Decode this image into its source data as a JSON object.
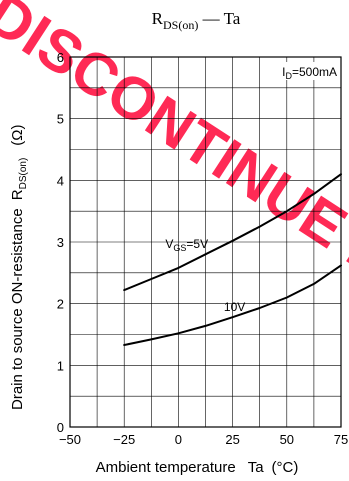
{
  "chart_data": {
    "type": "line",
    "title": {
      "main": "R",
      "sub": "DS(on)",
      "sep": " — ",
      "tail": "Ta"
    },
    "xlabel": {
      "text": "Ambient temperature",
      "var": "Ta",
      "unit": "(°C)"
    },
    "ylabel": {
      "text": "Drain to source ON-resistance",
      "var": "R",
      "var_sub": "DS(on)",
      "unit": "(Ω)"
    },
    "xlim": [
      -50,
      75
    ],
    "ylim": [
      0,
      6
    ],
    "xticks": [
      "−50",
      "−25",
      "0",
      "25",
      "50",
      "75"
    ],
    "xtick_values": [
      -50,
      -25,
      0,
      25,
      50,
      75
    ],
    "yticks": [
      "0",
      "1",
      "2",
      "3",
      "4",
      "5",
      "6"
    ],
    "ytick_values": [
      0,
      1,
      2,
      3,
      4,
      5,
      6
    ],
    "grid": true,
    "condition": {
      "pre": "I",
      "sub": "D",
      "post": "=500mA"
    },
    "series": [
      {
        "name": "V_GS=5V",
        "label": {
          "pre": "V",
          "sub": "GS",
          "post": "=5V"
        },
        "x": [
          -25,
          -12.5,
          0,
          12.5,
          25,
          37.5,
          50,
          62.5,
          75
        ],
        "y": [
          2.22,
          2.4,
          2.58,
          2.8,
          3.02,
          3.25,
          3.5,
          3.78,
          4.1
        ]
      },
      {
        "name": "10V",
        "label": {
          "pre": "10V",
          "sub": "",
          "post": ""
        },
        "x": [
          -25,
          -12.5,
          0,
          12.5,
          25,
          37.5,
          50,
          62.5,
          75
        ],
        "y": [
          1.33,
          1.42,
          1.52,
          1.64,
          1.78,
          1.93,
          2.1,
          2.32,
          2.62
        ]
      }
    ],
    "watermark": "MAY DISCONTINUE PROD",
    "watermark_color": "#ff2a55"
  }
}
